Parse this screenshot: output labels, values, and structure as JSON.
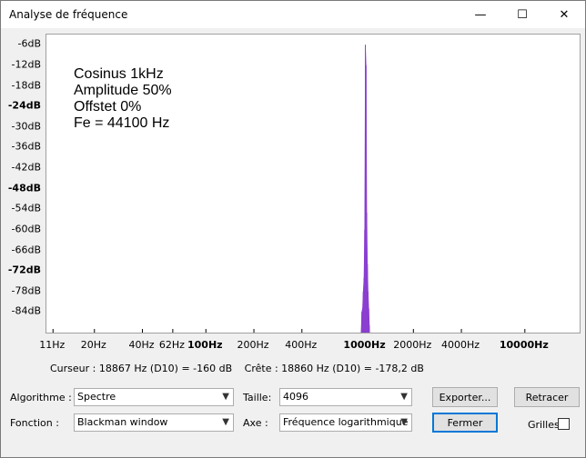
{
  "window": {
    "title": "Analyse de fréquence",
    "minimize": "—",
    "maximize": "☐",
    "close": "✕"
  },
  "annotation": {
    "line1": "Cosinus 1kHz",
    "line2": "Amplitude 50%",
    "line3": "Offstet 0%",
    "line4": "Fe = 44100 Hz"
  },
  "chart_data": {
    "type": "area",
    "title": "",
    "xlabel": "",
    "ylabel": "",
    "xscale": "log",
    "color": "#8b3fd1",
    "yticks": [
      {
        "label": "-6dB",
        "value": -6,
        "bold": false
      },
      {
        "label": "-12dB",
        "value": -12,
        "bold": false
      },
      {
        "label": "-18dB",
        "value": -18,
        "bold": false
      },
      {
        "label": "-24dB",
        "value": -24,
        "bold": true
      },
      {
        "label": "-30dB",
        "value": -30,
        "bold": false
      },
      {
        "label": "-36dB",
        "value": -36,
        "bold": false
      },
      {
        "label": "-42dB",
        "value": -42,
        "bold": false
      },
      {
        "label": "-48dB",
        "value": -48,
        "bold": true
      },
      {
        "label": "-54dB",
        "value": -54,
        "bold": false
      },
      {
        "label": "-60dB",
        "value": -60,
        "bold": false
      },
      {
        "label": "-66dB",
        "value": -66,
        "bold": false
      },
      {
        "label": "-72dB",
        "value": -72,
        "bold": true
      },
      {
        "label": "-78dB",
        "value": -78,
        "bold": false
      },
      {
        "label": "-84dB",
        "value": -84,
        "bold": false
      }
    ],
    "xticks": [
      {
        "label": "11Hz",
        "value": 11,
        "bold": false
      },
      {
        "label": "20Hz",
        "value": 20,
        "bold": false
      },
      {
        "label": "40Hz",
        "value": 40,
        "bold": false
      },
      {
        "label": "62Hz",
        "value": 62,
        "bold": false
      },
      {
        "label": "100Hz",
        "value": 100,
        "bold": true
      },
      {
        "label": "200Hz",
        "value": 200,
        "bold": false
      },
      {
        "label": "400Hz",
        "value": 400,
        "bold": false
      },
      {
        "label": "1000Hz",
        "value": 1000,
        "bold": true
      },
      {
        "label": "2000Hz",
        "value": 2000,
        "bold": false
      },
      {
        "label": "4000Hz",
        "value": 4000,
        "bold": false
      },
      {
        "label": "10000Hz",
        "value": 10000,
        "bold": true
      }
    ],
    "xlim": [
      10,
      22050
    ],
    "ylim": [
      -90,
      -3
    ],
    "series": [
      {
        "values": [
          [
            940,
            -90
          ],
          [
            950,
            -84
          ],
          [
            960,
            -83
          ],
          [
            970,
            -78
          ],
          [
            980,
            -74
          ],
          [
            990,
            -60
          ],
          [
            1000,
            -6
          ],
          [
            1010,
            -12
          ],
          [
            1020,
            -55
          ],
          [
            1030,
            -70
          ],
          [
            1040,
            -78
          ],
          [
            1050,
            -83
          ],
          [
            1060,
            -88
          ]
        ]
      }
    ]
  },
  "status": {
    "cursor": "Curseur : 18867 Hz (D10) = -160 dB",
    "peak": "Crête : 18860 Hz (D10) = -178,2 dB"
  },
  "controls": {
    "algo_label": "Algorithme :",
    "algo_value": "Spectre",
    "size_label": "Taille:",
    "size_value": "4096",
    "func_label": "Fonction :",
    "func_value": "Blackman window",
    "axis_label": "Axe :",
    "axis_value": "Fréquence logarithmique",
    "export_label": "Exporter...",
    "retrace_label": "Retracer",
    "close_label": "Fermer",
    "grid_label": "Grilles",
    "grid_checked": false
  }
}
